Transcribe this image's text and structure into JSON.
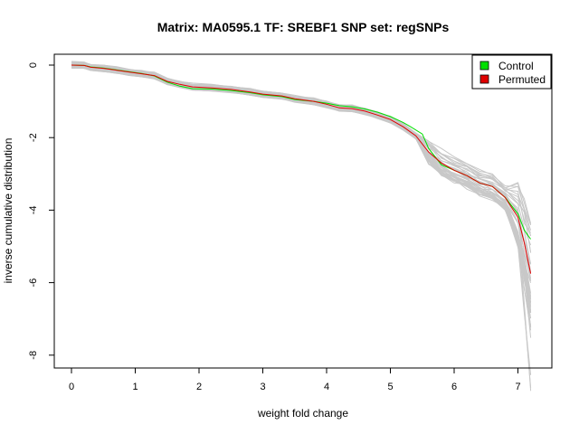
{
  "chart_data": {
    "type": "line",
    "title": "Matrix: MA0595.1 TF: SREBF1 SNP set: regSNPs",
    "xlabel": "weight fold change",
    "ylabel": "inverse cumulative distribution",
    "xlim": [
      0,
      7.2
    ],
    "ylim": [
      -8,
      0
    ],
    "xticks": [
      "0",
      "1",
      "2",
      "3",
      "4",
      "5",
      "6",
      "7"
    ],
    "yticks": [
      "0",
      "-2",
      "-4",
      "-6",
      "-8"
    ],
    "grid": false,
    "legend_position": "top-right",
    "background_series_color": "#c8c8c8",
    "background_series_note": "many grey permutation curves",
    "background_series_count": 40,
    "series": [
      {
        "name": "Control",
        "color": "#00e000",
        "points": [
          [
            0,
            0
          ],
          [
            0.2,
            -0.01
          ],
          [
            0.3,
            -0.05
          ],
          [
            0.5,
            -0.08
          ],
          [
            0.7,
            -0.13
          ],
          [
            0.9,
            -0.18
          ],
          [
            1.1,
            -0.23
          ],
          [
            1.3,
            -0.3
          ],
          [
            1.5,
            -0.47
          ],
          [
            1.7,
            -0.58
          ],
          [
            1.9,
            -0.65
          ],
          [
            2.2,
            -0.66
          ],
          [
            2.5,
            -0.7
          ],
          [
            2.8,
            -0.76
          ],
          [
            3.0,
            -0.82
          ],
          [
            3.3,
            -0.87
          ],
          [
            3.5,
            -0.95
          ],
          [
            3.8,
            -1.0
          ],
          [
            4.0,
            -1.05
          ],
          [
            4.2,
            -1.12
          ],
          [
            4.4,
            -1.15
          ],
          [
            4.6,
            -1.21
          ],
          [
            4.8,
            -1.3
          ],
          [
            5.0,
            -1.42
          ],
          [
            5.2,
            -1.58
          ],
          [
            5.3,
            -1.68
          ],
          [
            5.5,
            -1.9
          ],
          [
            5.6,
            -2.3
          ],
          [
            5.8,
            -2.75
          ],
          [
            6.0,
            -2.9
          ],
          [
            6.2,
            -3.05
          ],
          [
            6.4,
            -3.25
          ],
          [
            6.6,
            -3.35
          ],
          [
            6.8,
            -3.65
          ],
          [
            7.0,
            -4.1
          ],
          [
            7.1,
            -4.55
          ],
          [
            7.2,
            -4.8
          ]
        ]
      },
      {
        "name": "Permuted",
        "color": "#e00000",
        "points": [
          [
            0,
            0
          ],
          [
            0.2,
            -0.01
          ],
          [
            0.3,
            -0.06
          ],
          [
            0.5,
            -0.09
          ],
          [
            0.7,
            -0.14
          ],
          [
            0.9,
            -0.19
          ],
          [
            1.1,
            -0.24
          ],
          [
            1.3,
            -0.29
          ],
          [
            1.5,
            -0.45
          ],
          [
            1.7,
            -0.53
          ],
          [
            1.9,
            -0.6
          ],
          [
            2.2,
            -0.63
          ],
          [
            2.5,
            -0.67
          ],
          [
            2.8,
            -0.74
          ],
          [
            3.0,
            -0.8
          ],
          [
            3.3,
            -0.85
          ],
          [
            3.5,
            -0.93
          ],
          [
            3.8,
            -1.0
          ],
          [
            4.0,
            -1.08
          ],
          [
            4.2,
            -1.18
          ],
          [
            4.4,
            -1.2
          ],
          [
            4.6,
            -1.27
          ],
          [
            4.8,
            -1.38
          ],
          [
            5.0,
            -1.5
          ],
          [
            5.2,
            -1.7
          ],
          [
            5.4,
            -1.95
          ],
          [
            5.6,
            -2.4
          ],
          [
            5.8,
            -2.7
          ],
          [
            6.0,
            -2.9
          ],
          [
            6.2,
            -3.05
          ],
          [
            6.4,
            -3.25
          ],
          [
            6.6,
            -3.35
          ],
          [
            6.8,
            -3.65
          ],
          [
            7.0,
            -4.2
          ],
          [
            7.1,
            -4.9
          ],
          [
            7.2,
            -5.75
          ]
        ]
      }
    ]
  }
}
